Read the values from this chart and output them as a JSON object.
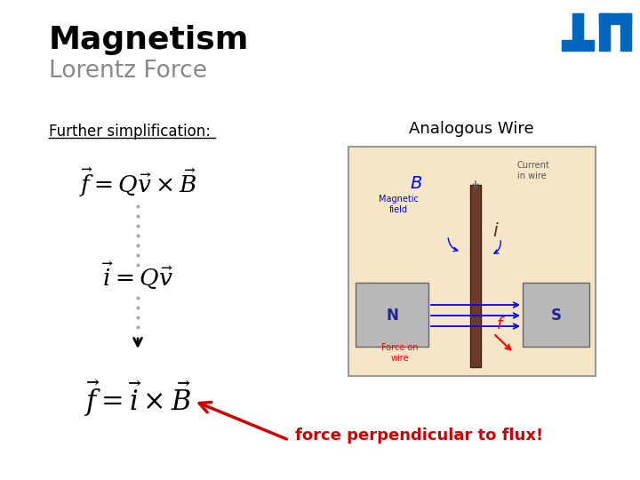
{
  "title": "Magnetism",
  "subtitle": "Lorentz Force",
  "title_color": "#000000",
  "subtitle_color": "#888888",
  "bg_color": "#ffffff",
  "further_simplification_text": "Further simplification:",
  "eq1": "$\\vec{f} = Q\\vec{v} \\times \\vec{B}$",
  "eq2": "$\\vec{i} = Q\\vec{v}$",
  "eq3": "$\\vec{f} = \\vec{i} \\times \\vec{B}$",
  "analogous_wire_text": "Analogous Wire",
  "force_text": "force perpendicular to flux!",
  "force_text_color": "#cc0000",
  "tum_blue": "#0065bd",
  "arrow_color": "#cc0000"
}
